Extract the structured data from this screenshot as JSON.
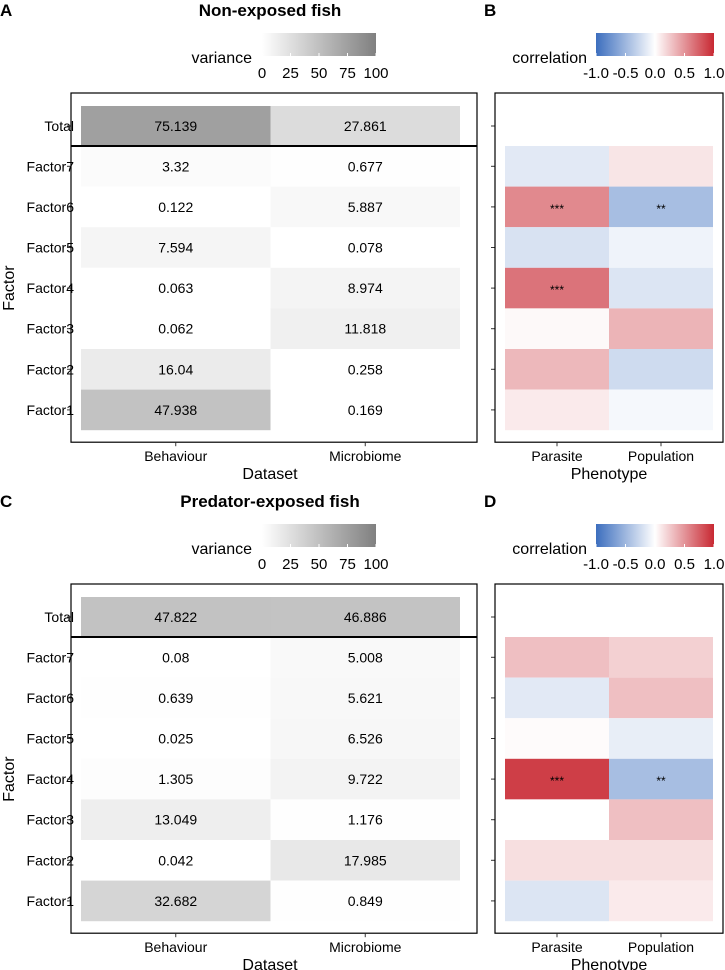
{
  "chart_data": [
    {
      "panel": "A",
      "type": "heatmap",
      "title": "Non-exposed fish",
      "legend": {
        "title": "variance",
        "ticks": [
          "0",
          "25",
          "50",
          "75",
          "100"
        ],
        "range": [
          0,
          100
        ]
      },
      "columns": [
        "Behaviour",
        "Microbiome"
      ],
      "xlabel": "Dataset",
      "ylabel": "Factor",
      "total_label": "Total",
      "totals": [
        75.139,
        27.861
      ],
      "totals_text": [
        "75.139",
        "27.861"
      ],
      "rows": [
        "Factor7",
        "Factor6",
        "Factor5",
        "Factor4",
        "Factor3",
        "Factor2",
        "Factor1"
      ],
      "values": [
        [
          3.32,
          0.677
        ],
        [
          0.122,
          5.887
        ],
        [
          7.594,
          0.078
        ],
        [
          0.063,
          8.974
        ],
        [
          0.062,
          11.818
        ],
        [
          16.04,
          0.258
        ],
        [
          47.938,
          0.169
        ]
      ],
      "labels": [
        [
          "3.32",
          "0.677"
        ],
        [
          "0.122",
          "5.887"
        ],
        [
          "7.594",
          "0.078"
        ],
        [
          "0.063",
          "8.974"
        ],
        [
          "0.062",
          "11.818"
        ],
        [
          "16.04",
          "0.258"
        ],
        [
          "47.938",
          "0.169"
        ]
      ]
    },
    {
      "panel": "B",
      "type": "heatmap",
      "legend": {
        "title": "correlation",
        "ticks": [
          "-1.0",
          "-0.5",
          "0.0",
          "0.5",
          "1.0"
        ],
        "range": [
          -1,
          1
        ]
      },
      "columns": [
        "Parasite",
        "Population"
      ],
      "xlabel": "Phenotype",
      "rows": [
        "Factor7",
        "Factor6",
        "Factor5",
        "Factor4",
        "Factor3",
        "Factor2",
        "Factor1"
      ],
      "values": [
        [
          -0.15,
          0.12
        ],
        [
          0.55,
          -0.45
        ],
        [
          -0.2,
          -0.08
        ],
        [
          0.65,
          -0.18
        ],
        [
          0.03,
          0.35
        ],
        [
          0.33,
          -0.25
        ],
        [
          0.1,
          -0.05
        ]
      ],
      "stars": [
        [
          "",
          ""
        ],
        [
          "***",
          "**"
        ],
        [
          "",
          ""
        ],
        [
          "***",
          ""
        ],
        [
          "",
          ""
        ],
        [
          "",
          ""
        ],
        [
          "",
          ""
        ]
      ]
    },
    {
      "panel": "C",
      "type": "heatmap",
      "title": "Predator-exposed fish",
      "legend": {
        "title": "variance",
        "ticks": [
          "0",
          "25",
          "50",
          "75",
          "100"
        ],
        "range": [
          0,
          100
        ]
      },
      "columns": [
        "Behaviour",
        "Microbiome"
      ],
      "xlabel": "Dataset",
      "ylabel": "Factor",
      "total_label": "Total",
      "totals": [
        47.822,
        46.886
      ],
      "totals_text": [
        "47.822",
        "46.886"
      ],
      "rows": [
        "Factor7",
        "Factor6",
        "Factor5",
        "Factor4",
        "Factor3",
        "Factor2",
        "Factor1"
      ],
      "values": [
        [
          0.08,
          5.008
        ],
        [
          0.639,
          5.621
        ],
        [
          0.025,
          6.526
        ],
        [
          1.305,
          9.722
        ],
        [
          13.049,
          1.176
        ],
        [
          0.042,
          17.985
        ],
        [
          32.682,
          0.849
        ]
      ],
      "labels": [
        [
          "0.08",
          "5.008"
        ],
        [
          "0.639",
          "5.621"
        ],
        [
          "0.025",
          "6.526"
        ],
        [
          "1.305",
          "9.722"
        ],
        [
          "13.049",
          "1.176"
        ],
        [
          "0.042",
          "17.985"
        ],
        [
          "32.682",
          "0.849"
        ]
      ]
    },
    {
      "panel": "D",
      "type": "heatmap",
      "legend": {
        "title": "correlation",
        "ticks": [
          "-1.0",
          "-0.5",
          "0.0",
          "0.5",
          "1.0"
        ],
        "range": [
          -1,
          1
        ]
      },
      "columns": [
        "Parasite",
        "Population"
      ],
      "xlabel": "Phenotype",
      "rows": [
        "Factor7",
        "Factor6",
        "Factor5",
        "Factor4",
        "Factor3",
        "Factor2",
        "Factor1"
      ],
      "values": [
        [
          0.3,
          0.22
        ],
        [
          -0.15,
          0.3
        ],
        [
          0.02,
          -0.12
        ],
        [
          0.9,
          -0.45
        ],
        [
          0.0,
          0.3
        ],
        [
          0.15,
          0.15
        ],
        [
          -0.18,
          0.1
        ]
      ],
      "stars": [
        [
          "",
          ""
        ],
        [
          "",
          ""
        ],
        [
          "",
          ""
        ],
        [
          "***",
          "**"
        ],
        [
          "",
          ""
        ],
        [
          "",
          ""
        ],
        [
          "",
          ""
        ]
      ]
    }
  ]
}
